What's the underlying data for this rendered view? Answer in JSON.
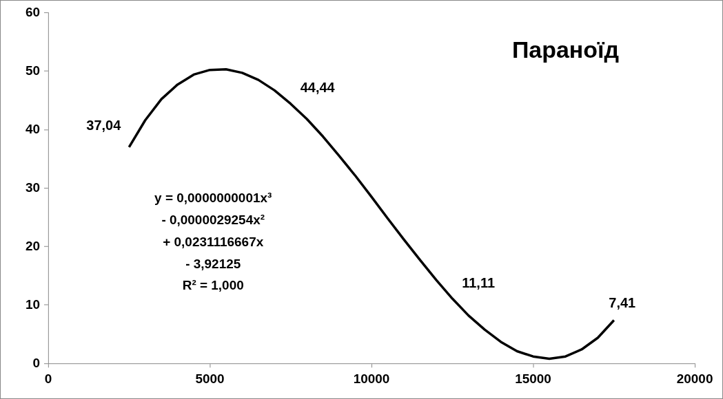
{
  "chart_data": {
    "type": "line",
    "title": "Параноїд",
    "xlim": [
      0,
      20000
    ],
    "xticks": [
      0,
      5000,
      10000,
      15000,
      20000
    ],
    "ylim": [
      0,
      60
    ],
    "yticks": [
      0,
      10,
      20,
      30,
      40,
      50,
      60
    ],
    "grid": false,
    "legend": false,
    "marker": "none",
    "line_style": "solid",
    "series": [
      {
        "color": "#000000",
        "x": [
          2500,
          3000,
          3500,
          4000,
          4500,
          5000,
          5500,
          6000,
          6500,
          7000,
          7500,
          8000,
          8500,
          9000,
          9500,
          10000,
          10500,
          11000,
          11500,
          12000,
          12500,
          13000,
          13500,
          14000,
          14500,
          15000,
          15500,
          16000,
          16500,
          17000,
          17500
        ],
        "values": [
          37.0,
          41.6,
          45.2,
          47.7,
          49.4,
          50.2,
          50.3,
          49.7,
          48.5,
          46.7,
          44.4,
          41.8,
          38.8,
          35.5,
          32.1,
          28.5,
          24.8,
          21.2,
          17.7,
          14.3,
          11.1,
          8.2,
          5.8,
          3.7,
          2.1,
          1.2,
          0.8,
          1.2,
          2.4,
          4.4,
          7.4
        ]
      }
    ],
    "annotations": [
      {
        "text": "37,04",
        "x": 2500,
        "y": 37.04
      },
      {
        "text": "44,44",
        "x": 7500,
        "y": 44.44
      },
      {
        "text": "11,11",
        "x": 12500,
        "y": 11.11
      },
      {
        "text": "7,41",
        "x": 17500,
        "y": 7.41
      },
      "y = 0,0000000001x³\n- 0,0000029254x²\n+ 0,0231116667x\n- 3,92125\nR² = 1,000"
    ]
  }
}
